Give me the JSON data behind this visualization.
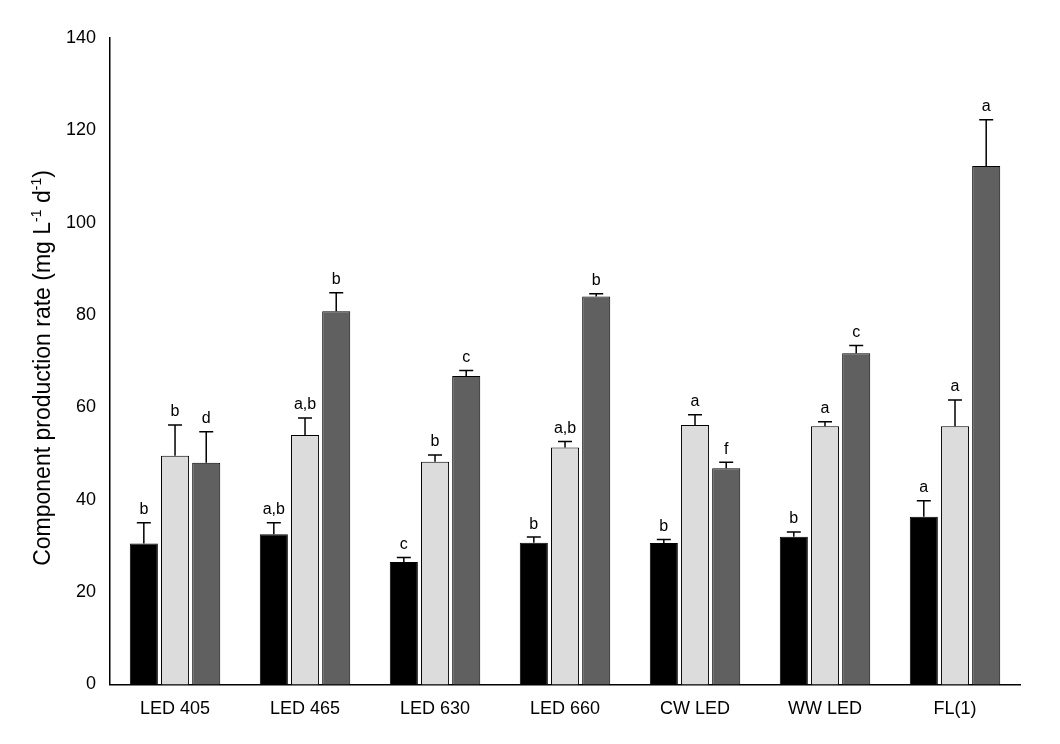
{
  "chart_data": {
    "type": "bar",
    "ylabel": "Component production rate (mg L$^{-1}$ d$^{-1}$)",
    "categories": [
      "LED 405",
      "LED 465",
      "LED 630",
      "LED 660",
      "CW LED",
      "WW LED",
      "FL(1)"
    ],
    "series": [
      {
        "color": "#000000",
        "values": [
          30.5,
          32.5,
          26.5,
          30.7,
          30.6,
          32,
          36.3
        ],
        "errors": [
          [
            30.5,
            35
          ],
          [
            32.5,
            35
          ],
          [
            26.5,
            27.5
          ],
          [
            30.7,
            31.9
          ],
          [
            30.6,
            31.4
          ],
          [
            32,
            33
          ],
          [
            36.3,
            39.8
          ]
        ]
      },
      {
        "color": "#dcdcdc",
        "values": [
          49.5,
          54,
          48.2,
          51.3,
          56.2,
          55.9,
          55.9
        ],
        "errors": [
          [
            49.5,
            56.2
          ],
          [
            54,
            57.7
          ],
          [
            48.2,
            49.7
          ],
          [
            51.3,
            52.6
          ],
          [
            56.2,
            58.4
          ],
          [
            55.9,
            56.9
          ],
          [
            55.9,
            61.6
          ]
        ]
      },
      {
        "color": "#606060",
        "values": [
          48,
          80.8,
          66.8,
          84,
          46.8,
          71.7,
          112.3
        ],
        "errors": [
          [
            48,
            54.7
          ],
          [
            80.8,
            84.8
          ],
          [
            66.8,
            68
          ],
          [
            84,
            84.6
          ],
          [
            46.8,
            48.1
          ],
          [
            71.7,
            73.4
          ],
          [
            112.3,
            122.3
          ]
        ]
      }
    ],
    "ylim": [
      0,
      140
    ],
    "yticks": [
      0,
      20,
      40,
      60,
      80,
      100,
      120,
      140
    ],
    "grid": false,
    "legend": false,
    "annotations": [
      "b",
      "b",
      "d",
      "a,b",
      "a,b",
      "b",
      "c",
      "b",
      "c",
      "b",
      "a,b",
      "b",
      "b",
      "a",
      "f",
      "b",
      "a",
      "c",
      "a",
      "a",
      "a"
    ]
  }
}
